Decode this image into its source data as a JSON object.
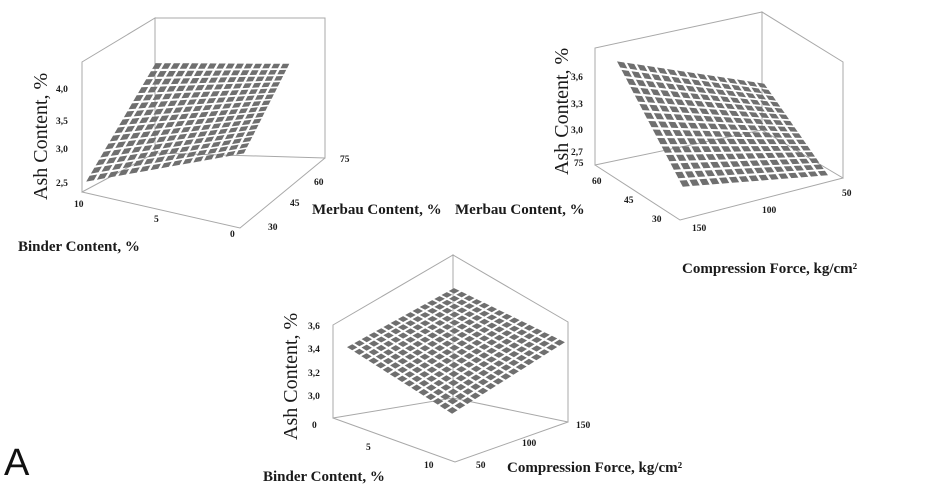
{
  "panel_label": "A",
  "chart_data": [
    {
      "type": "surface3d",
      "title": "",
      "axes": {
        "x": {
          "label": "Binder Content, %",
          "ticks": [
            "10",
            "5",
            "0"
          ],
          "range": [
            10,
            0
          ]
        },
        "y": {
          "label": "Merbau Content, %",
          "ticks": [
            "30",
            "45",
            "60",
            "75"
          ],
          "range": [
            30,
            75
          ]
        },
        "z": {
          "label": "Ash Content, %",
          "ticks": [
            "2,5",
            "3,0",
            "3,5",
            "4,0"
          ],
          "range": [
            2.4,
            4.1
          ]
        }
      },
      "grid_size": 15,
      "surface": {
        "corner_values": {
          "x_min_y_min": 2.5,
          "x_max_y_min": 3.0,
          "x_min_y_max": 3.5,
          "x_max_y_max": 4.0
        }
      }
    },
    {
      "type": "surface3d",
      "title": "",
      "axes": {
        "x": {
          "label": "Compression Force, kg/cm²",
          "ticks": [
            "150",
            "100",
            "50"
          ],
          "range": [
            150,
            50
          ]
        },
        "y": {
          "label": "Merbau Content, %",
          "ticks": [
            "30",
            "45",
            "60",
            "75"
          ],
          "range": [
            30,
            75
          ]
        },
        "z": {
          "label": "Ash Content, %",
          "ticks": [
            "2,7",
            "3,0",
            "3,3",
            "3,6"
          ],
          "range": [
            2.7,
            3.7
          ]
        }
      },
      "grid_size": 15,
      "surface": {
        "corner_values": {
          "x_min_y_min": 2.75,
          "x_max_y_min": 3.05,
          "x_min_y_max": 3.35,
          "x_max_y_max": 3.65
        }
      }
    },
    {
      "type": "surface3d",
      "title": "",
      "axes": {
        "x": {
          "label": "Binder Content, %",
          "ticks": [
            "0",
            "5",
            "10"
          ],
          "range": [
            0,
            10
          ]
        },
        "y": {
          "label": "Compression Force, kg/cm²",
          "ticks": [
            "50",
            "100",
            "150"
          ],
          "range": [
            50,
            150
          ]
        },
        "z": {
          "label": "Ash Content, %",
          "ticks": [
            "0",
            "3,0",
            "3,2",
            "3,4",
            "3,6"
          ],
          "range": [
            2.8,
            3.7
          ]
        }
      },
      "grid_size": 15,
      "surface": {
        "corner_values": {
          "x_min_y_min": 3.0,
          "x_max_y_min": 3.3,
          "x_min_y_max": 3.45,
          "x_max_y_max": 3.7
        }
      }
    }
  ]
}
